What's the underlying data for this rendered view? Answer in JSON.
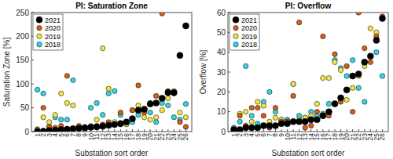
{
  "chart_data": [
    {
      "type": "scatter",
      "title": "PI: Saturation Zone",
      "x_label": "Substation sort order",
      "y_label": "Saturation Zone [%]",
      "x": [
        1,
        2,
        3,
        4,
        5,
        6,
        7,
        8,
        9,
        10,
        11,
        12,
        13,
        14,
        15,
        16,
        17,
        18,
        19,
        20,
        21,
        22,
        23,
        24,
        25,
        26
      ],
      "xlim": [
        0,
        27
      ],
      "xticks": [
        1,
        2,
        3,
        4,
        5,
        6,
        7,
        8,
        9,
        10,
        11,
        12,
        13,
        14,
        15,
        16,
        17,
        18,
        19,
        20,
        21,
        22,
        23,
        24,
        25,
        26
      ],
      "ylim": [
        0,
        250
      ],
      "yticks": [
        0,
        50,
        100,
        150,
        200,
        250
      ],
      "grid": false,
      "legend": "upper left",
      "marker": "circle",
      "series": [
        {
          "name": "2021",
          "color": "#000000",
          "values": [
            0,
            1,
            2,
            3,
            4,
            5,
            6,
            7,
            8,
            9,
            10,
            11,
            13,
            15,
            17,
            20,
            27,
            45,
            47,
            58,
            60,
            70,
            82,
            82,
            160,
            222
          ]
        },
        {
          "name": "2020",
          "color": "#d35f1a",
          "values": [
            5,
            50,
            10,
            8,
            12,
            117,
            5,
            12,
            8,
            10,
            12,
            15,
            20,
            15,
            40,
            20,
            45,
            97,
            40,
            60,
            75,
            248,
            85,
            80,
            20,
            10
          ]
        },
        {
          "name": "2019",
          "color": "#f0e442",
          "values": [
            2,
            30,
            20,
            35,
            80,
            60,
            55,
            8,
            5,
            12,
            25,
            175,
            90,
            20,
            15,
            15,
            45,
            55,
            30,
            25,
            30,
            45,
            70,
            85,
            40,
            30
          ]
        },
        {
          "name": "2018",
          "color": "#35d4e0",
          "values": [
            88,
            80,
            10,
            30,
            25,
            25,
            108,
            10,
            10,
            50,
            60,
            35,
            80,
            85,
            35,
            20,
            20,
            35,
            45,
            40,
            20,
            60,
            55,
            30,
            25,
            58
          ]
        }
      ]
    },
    {
      "type": "scatter",
      "title": "PI: Overflow",
      "x_label": "Substation sort order",
      "y_label": "Overflow [%]",
      "x": [
        1,
        2,
        3,
        4,
        5,
        6,
        7,
        8,
        9,
        10,
        11,
        12,
        13,
        14,
        15,
        16,
        17,
        18,
        19,
        20,
        21,
        22,
        23,
        24,
        25,
        26
      ],
      "xlim": [
        0,
        27
      ],
      "xticks": [
        1,
        2,
        3,
        4,
        5,
        6,
        7,
        8,
        9,
        10,
        11,
        12,
        13,
        14,
        15,
        16,
        17,
        18,
        19,
        20,
        21,
        22,
        23,
        24,
        25,
        26
      ],
      "ylim": [
        0,
        60
      ],
      "yticks": [
        0,
        10,
        20,
        30,
        40,
        50,
        60
      ],
      "grid": false,
      "legend": "upper left",
      "marker": "circle",
      "series": [
        {
          "name": "2021",
          "color": "#000000",
          "values": [
            1,
            1,
            2,
            2,
            2,
            3,
            3,
            3,
            4,
            4,
            5,
            5,
            5,
            6,
            6,
            8,
            10,
            14,
            17,
            21,
            28,
            29,
            35,
            38,
            46,
            57
          ]
        },
        {
          "name": "2020",
          "color": "#d35f1a",
          "values": [
            0,
            8,
            3,
            12,
            12,
            8,
            2,
            12,
            5,
            5,
            18,
            55,
            2,
            3,
            10,
            48,
            8,
            39,
            15,
            33,
            10,
            60,
            42,
            35,
            48,
            58
          ]
        },
        {
          "name": "2019",
          "color": "#f0e442",
          "values": [
            1,
            9,
            10,
            5,
            15,
            13,
            5,
            7,
            6,
            5,
            24,
            6,
            7,
            8,
            14,
            27,
            27,
            35,
            31,
            16,
            22,
            28,
            33,
            52,
            50,
            57
          ]
        },
        {
          "name": "2018",
          "color": "#35d4e0",
          "values": [
            2,
            5,
            33,
            8,
            4,
            15,
            20,
            10,
            6,
            6,
            24,
            8,
            7,
            10,
            8,
            9,
            14,
            36,
            32,
            28,
            36,
            22,
            15,
            38,
            40,
            28
          ]
        }
      ]
    }
  ]
}
